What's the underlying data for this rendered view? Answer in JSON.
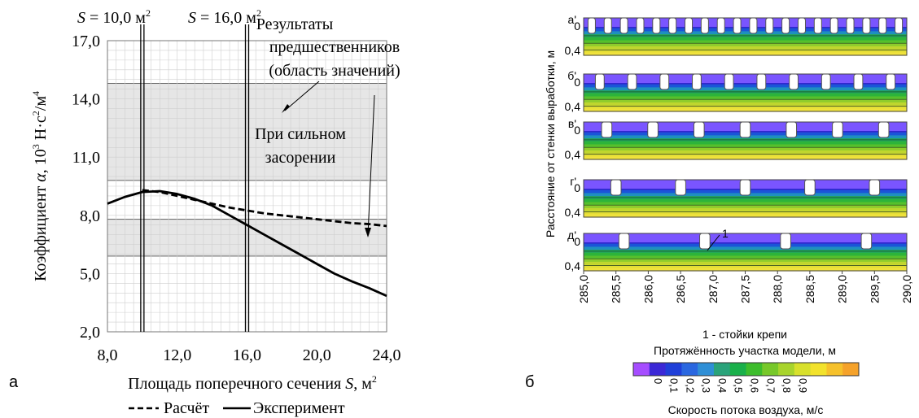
{
  "panel_a": {
    "letter": "а",
    "annotations": {
      "s10_prefix": "S",
      "s10_value": " = 10,0 м",
      "s10_exp": "2",
      "s16_prefix": "S",
      "s16_value": " = 16,0 м",
      "s16_exp": "2",
      "predecessors_line1": "Результаты",
      "predecessors_line2": "предшественников",
      "predecessors_line3": "(область значений)",
      "clogging_line1": "При сильном",
      "clogging_line2": "засорении"
    },
    "ylabel": {
      "text1": "Коэффициент ",
      "alpha": "α",
      "text2": ", 10",
      "exp1": "3",
      "text3": " Н·с",
      "exp2": "2",
      "text4": "/м",
      "exp3": "4"
    },
    "xlabel": {
      "text1": "Площадь поперечного сечения ",
      "s": "S",
      "text2": ", м",
      "exp": "2"
    },
    "legend": [
      {
        "label": "Расчёт",
        "style": "dashed"
      },
      {
        "label": "Эксперимент",
        "style": "solid"
      }
    ]
  },
  "panel_b": {
    "letter": "б",
    "ylabel": "Расстояние от стенки выработки, м",
    "xlabel": "Протяжённость участка модели, м",
    "note": "1 - стойки крепи",
    "callout": "1",
    "rows": [
      {
        "label": "а'",
        "notches": 20,
        "notch_width": 0.05
      },
      {
        "label": "б'",
        "notches": 10,
        "notch_width": 0.06
      },
      {
        "label": "в'",
        "notches": 7,
        "notch_width": 0.07
      },
      {
        "label": "г'",
        "notches": 5,
        "notch_width": 0.07
      },
      {
        "label": "д'",
        "notches": 4,
        "notch_width": 0.07
      }
    ],
    "y_ticks": [
      "0",
      "0,4"
    ],
    "x_ticks": [
      "285,0",
      "285,5",
      "286,0",
      "286,5",
      "287,0",
      "287,5",
      "288,0",
      "288,5",
      "289,0",
      "289,5",
      "290,0"
    ],
    "colorbar": {
      "title": "Скорость потока воздуха, м/с",
      "tick_labels": [
        "0",
        "0,1",
        "0,2",
        "0,3",
        "0,4",
        "0,5",
        "0,6",
        "0,7",
        "0,8",
        "0,9"
      ],
      "colors": [
        "#a64dff",
        "#3b28d6",
        "#1f3fd9",
        "#2a67e0",
        "#2f8fd6",
        "#2aa37a",
        "#19b04a",
        "#3dbd2c",
        "#77c82a",
        "#a8d42c",
        "#d8e02c",
        "#f2e22c",
        "#f6c12b",
        "#f5a22a"
      ]
    }
  },
  "chart_data": {
    "type": "line",
    "x": [
      8,
      9,
      10,
      11,
      12,
      13,
      14,
      15,
      16,
      17,
      18,
      19,
      20,
      21,
      22,
      23,
      24
    ],
    "series": [
      {
        "name": "Расчёт",
        "values": [
          null,
          null,
          9.3,
          9.2,
          9.0,
          8.8,
          8.6,
          8.4,
          8.25,
          8.1,
          8.0,
          7.9,
          7.8,
          7.7,
          7.6,
          7.55,
          7.45
        ]
      },
      {
        "name": "Эксперимент",
        "values": [
          8.6,
          8.95,
          9.2,
          9.25,
          9.1,
          8.85,
          8.5,
          8.0,
          7.5,
          7.0,
          6.5,
          6.0,
          5.5,
          5.0,
          4.6,
          4.25,
          3.85
        ]
      }
    ],
    "xlim": [
      8,
      24
    ],
    "ylim": [
      2,
      17
    ],
    "x_ticks": [
      "8,0",
      "12,0",
      "16,0",
      "20,0",
      "24,0"
    ],
    "y_ticks": [
      "2,0",
      "5,0",
      "8,0",
      "11,0",
      "14,0",
      "17,0"
    ],
    "shaded_bands": [
      {
        "from": 9.8,
        "to": 14.8,
        "color": "#e6e6e6"
      },
      {
        "from": 5.9,
        "to": 7.8,
        "color": "#e6e6e6"
      }
    ],
    "vertical_markers": [
      10,
      16
    ],
    "grid": true
  }
}
